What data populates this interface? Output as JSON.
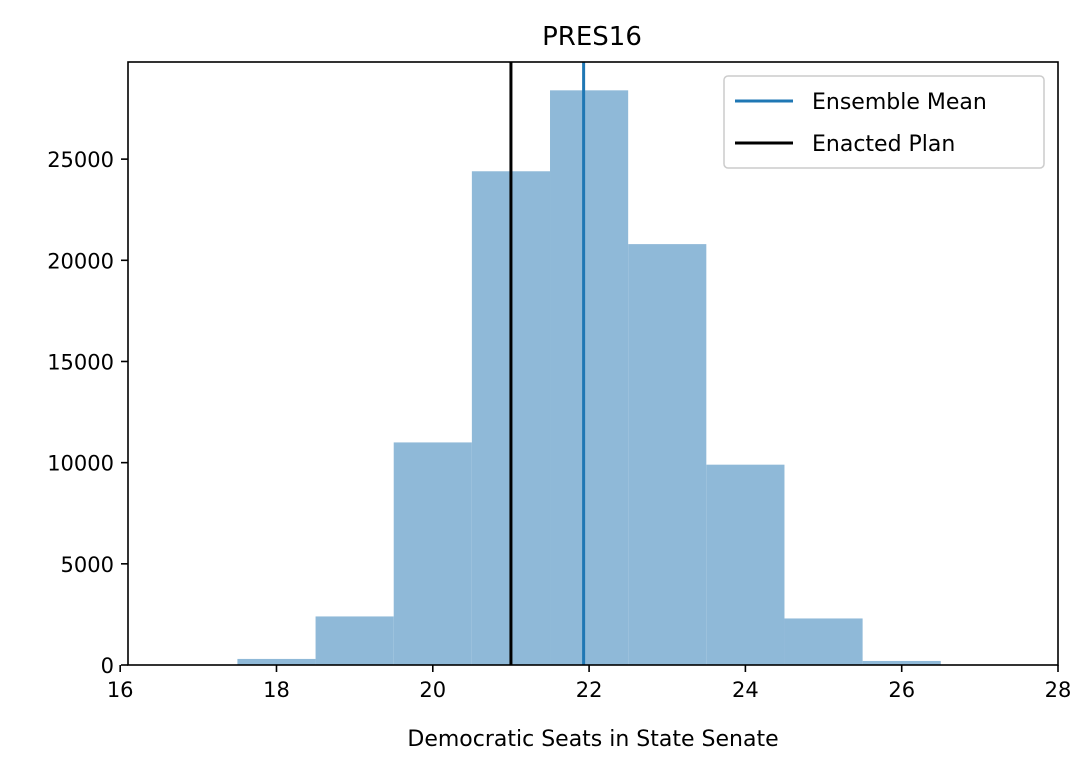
{
  "chart_data": {
    "type": "bar",
    "title": "PRES16",
    "xlabel": "Democratic Seats in State Senate",
    "ylabel": "",
    "xlim": [
      16.1,
      28.0
    ],
    "ylim": [
      0,
      29800
    ],
    "xticks": [
      16,
      18,
      20,
      22,
      24,
      26,
      28
    ],
    "yticks": [
      0,
      5000,
      10000,
      15000,
      20000,
      25000
    ],
    "histogram": {
      "color": "#8fb9d8",
      "bins": [
        {
          "x0": 17.5,
          "x1": 18.5,
          "count": 300
        },
        {
          "x0": 18.5,
          "x1": 19.5,
          "count": 2400
        },
        {
          "x0": 19.5,
          "x1": 20.5,
          "count": 11000
        },
        {
          "x0": 20.5,
          "x1": 21.5,
          "count": 24400
        },
        {
          "x0": 21.5,
          "x1": 22.5,
          "count": 28400
        },
        {
          "x0": 22.5,
          "x1": 23.5,
          "count": 20800
        },
        {
          "x0": 23.5,
          "x1": 24.5,
          "count": 9900
        },
        {
          "x0": 24.5,
          "x1": 25.5,
          "count": 2300
        },
        {
          "x0": 25.5,
          "x1": 26.5,
          "count": 200
        }
      ]
    },
    "vlines": [
      {
        "name": "Ensemble Mean",
        "x": 21.93,
        "color": "#1f77b4"
      },
      {
        "name": "Enacted Plan",
        "x": 21.0,
        "color": "#000000"
      }
    ],
    "legend": {
      "placement": "top-right",
      "entries": [
        {
          "label": "Ensemble Mean",
          "color": "#1f77b4"
        },
        {
          "label": "Enacted Plan",
          "color": "#000000"
        }
      ]
    },
    "grid": false
  }
}
